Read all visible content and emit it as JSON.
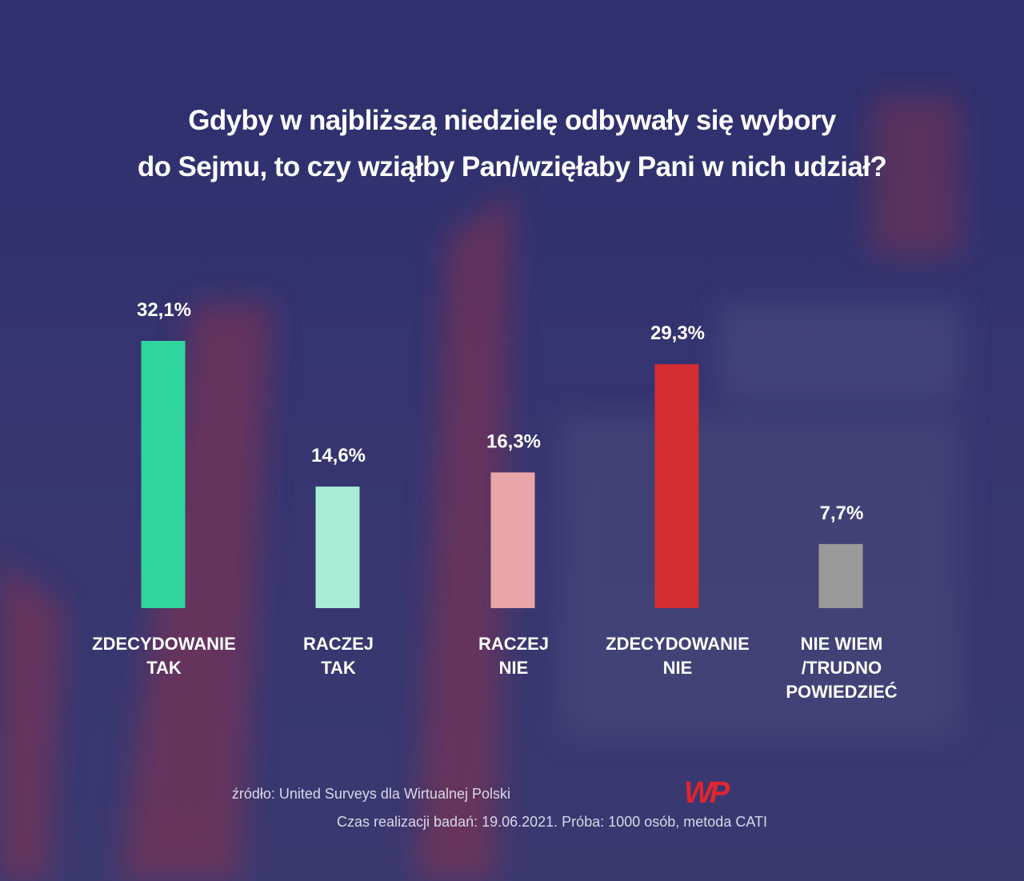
{
  "chart_data": {
    "type": "bar",
    "title": [
      "Gdyby w najbliższą niedzielę odbywały się wybory",
      "do Sejmu, to czy wziąłby Pan/wzięłaby Pani w nich udział?"
    ],
    "categories": [
      [
        "ZDECYDOWANIE",
        "TAK"
      ],
      [
        "RACZEJ",
        "TAK"
      ],
      [
        "RACZEJ",
        "NIE"
      ],
      [
        "ZDECYDOWANIE",
        "NIE"
      ],
      [
        "NIE WIEM",
        "/TRUDNO",
        "POWIEDZIEĆ"
      ]
    ],
    "values": [
      32.1,
      14.6,
      16.3,
      29.3,
      7.7
    ],
    "value_labels": [
      "32,1%",
      "14,6%",
      "16,3%",
      "29,3%",
      "7,7%"
    ],
    "colors": [
      "#2fd59c",
      "#a8ecd5",
      "#e9a6a8",
      "#d32d31",
      "#9a9a9a"
    ],
    "source": "źródło: United Surveys dla Wirtualnej Polski",
    "logo": "WP",
    "note": "Czas realizacji badań: 19.06.2021. Próba: 1000 osób, metoda CATI"
  }
}
